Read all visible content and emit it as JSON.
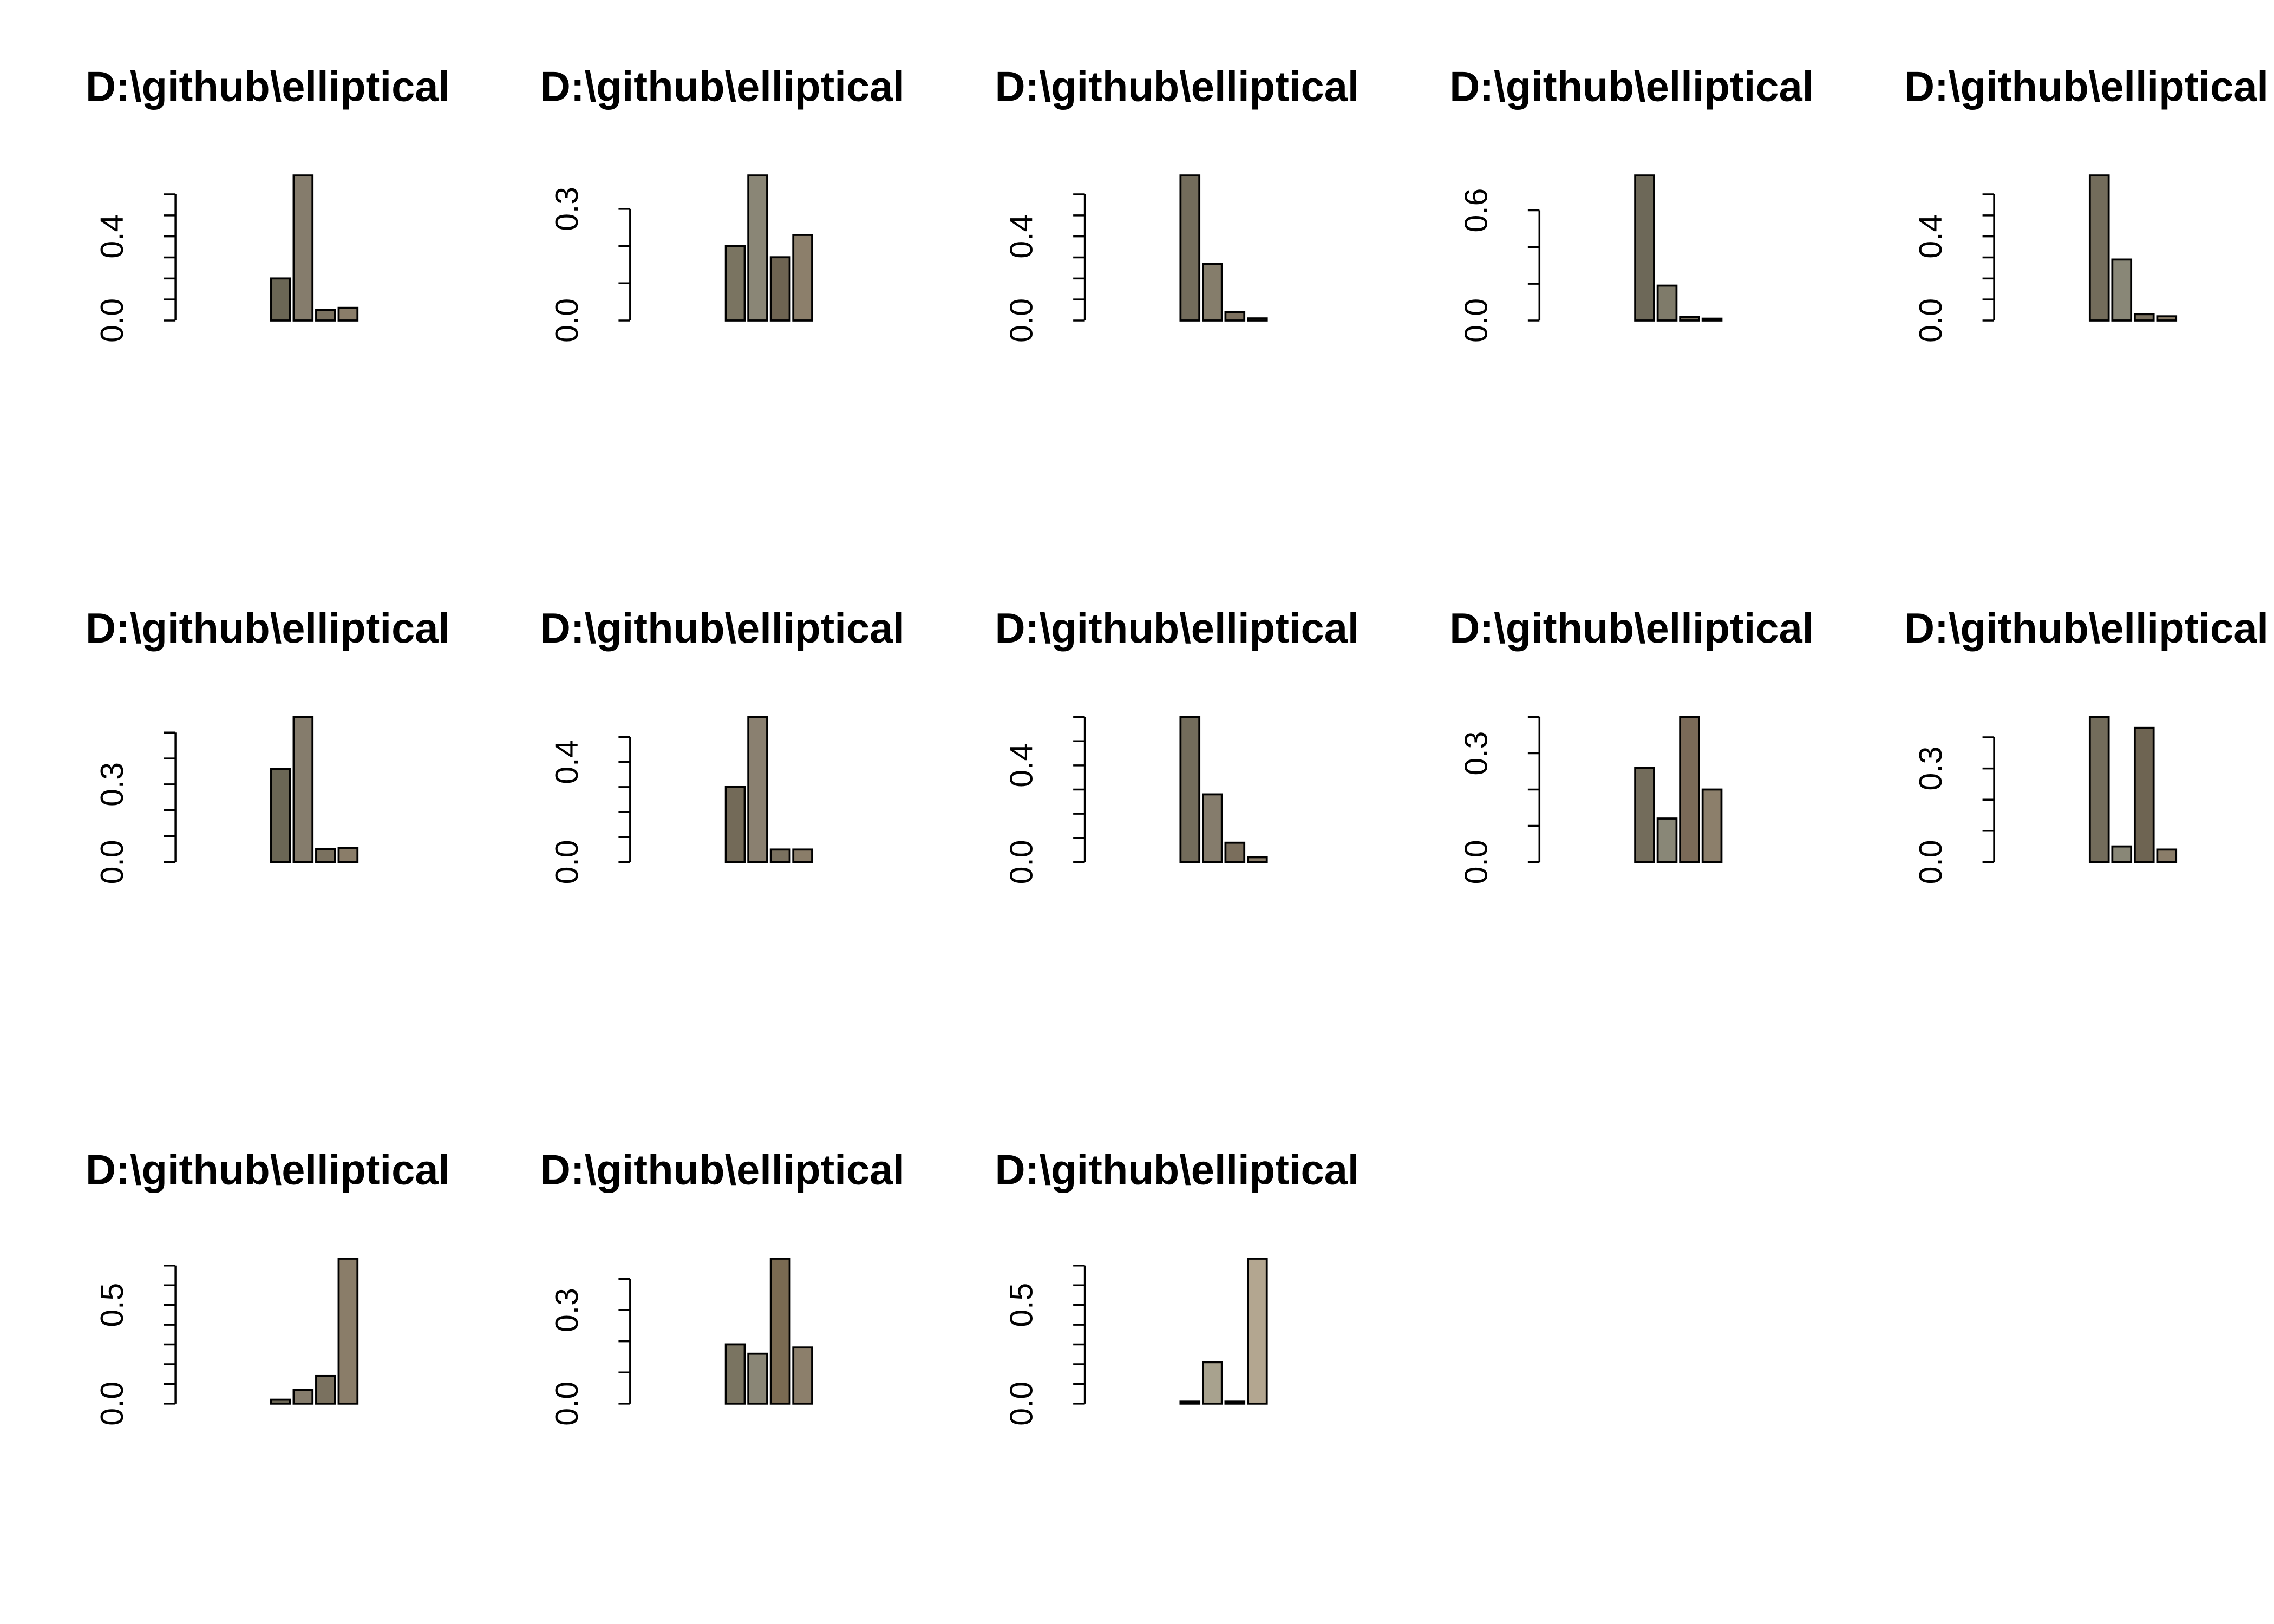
{
  "chart_data": [
    {
      "type": "bar",
      "title": "D:\\github\\elliptical",
      "values": [
        0,
        0,
        0,
        0,
        0.2,
        0.69,
        0.05,
        0.06
      ],
      "colors": [
        "#77705f",
        "#77705f",
        "#77705f",
        "#77705f",
        "#6b6655",
        "#857c6c",
        "#7a715f",
        "#8a7d69"
      ],
      "ylim": [
        0,
        0.69
      ],
      "yticks": [
        {
          "value": 0,
          "label": "0.0"
        },
        0.4
      ],
      "minor_yticks": [
        0.1,
        0.2,
        0.3,
        0.5,
        0.6
      ]
    },
    {
      "type": "bar",
      "title": "D:\\github\\elliptical",
      "values": [
        0,
        0,
        0,
        0,
        0.2,
        0.39,
        0.17,
        0.23
      ],
      "colors": [
        "#77705f",
        "#77705f",
        "#77705f",
        "#77705f",
        "#7a7461",
        "#8a8676",
        "#6e6452",
        "#8c7f6b"
      ],
      "ylim": [
        0,
        0.39
      ],
      "yticks": [
        {
          "value": 0,
          "label": "0.0"
        },
        0.3
      ],
      "minor_yticks": [
        0.1,
        0.2
      ]
    },
    {
      "type": "bar",
      "title": "D:\\github\\elliptical",
      "values": [
        0,
        0,
        0,
        0,
        0.69,
        0.27,
        0.04,
        0.01
      ],
      "colors": [
        "#77705f",
        "#77705f",
        "#77705f",
        "#77705f",
        "#736c5b",
        "#857d6b",
        "#7c705e",
        "#8a7d69"
      ],
      "ylim": [
        0,
        0.69
      ],
      "yticks": [
        {
          "value": 0,
          "label": "0.0"
        },
        0.4
      ],
      "minor_yticks": [
        0.1,
        0.2,
        0.3,
        0.5,
        0.6
      ]
    },
    {
      "type": "bar",
      "title": "D:\\github\\elliptical",
      "values": [
        0,
        0,
        0,
        0,
        0.79,
        0.19,
        0.02,
        0.01
      ],
      "colors": [
        "#77705f",
        "#77705f",
        "#77705f",
        "#77705f",
        "#6d6858",
        "#7f7b6a",
        "#7a715f",
        "#8a7d69"
      ],
      "ylim": [
        0,
        0.79
      ],
      "yticks": [
        {
          "value": 0,
          "label": "0.0"
        },
        0.6
      ],
      "minor_yticks": [
        0.2,
        0.4
      ]
    },
    {
      "type": "bar",
      "title": "D:\\github\\elliptical",
      "values": [
        0,
        0,
        0,
        0,
        0.69,
        0.29,
        0.03,
        0.02
      ],
      "colors": [
        "#77705f",
        "#77705f",
        "#77705f",
        "#77705f",
        "#736c5b",
        "#898777",
        "#7a715f",
        "#8a7d69"
      ],
      "ylim": [
        0,
        0.69
      ],
      "yticks": [
        {
          "value": 0,
          "label": "0.0"
        },
        0.4
      ],
      "minor_yticks": [
        0.1,
        0.2,
        0.3,
        0.5,
        0.6
      ]
    },
    {
      "type": "bar",
      "title": "D:\\github\\elliptical",
      "values": [
        0,
        0,
        0,
        0,
        0.36,
        0.56,
        0.05,
        0.055
      ],
      "colors": [
        "#77705f",
        "#77705f",
        "#77705f",
        "#77705f",
        "#6b6655",
        "#857c6c",
        "#7a715f",
        "#8a7d69"
      ],
      "ylim": [
        0,
        0.56
      ],
      "yticks": [
        {
          "value": 0,
          "label": "0.0"
        },
        0.3
      ],
      "minor_yticks": [
        0.1,
        0.2,
        0.4,
        0.5
      ]
    },
    {
      "type": "bar",
      "title": "D:\\github\\elliptical",
      "values": [
        0,
        0,
        0,
        0,
        0.3,
        0.58,
        0.05,
        0.05
      ],
      "colors": [
        "#77705f",
        "#77705f",
        "#77705f",
        "#77705f",
        "#736a58",
        "#8a8070",
        "#7a715f",
        "#8a7d69"
      ],
      "ylim": [
        0,
        0.58
      ],
      "yticks": [
        {
          "value": 0,
          "label": "0.0"
        },
        0.4
      ],
      "minor_yticks": [
        0.1,
        0.2,
        0.3,
        0.5
      ]
    },
    {
      "type": "bar",
      "title": "D:\\github\\elliptical",
      "values": [
        0,
        0,
        0,
        0,
        0.6,
        0.28,
        0.08,
        0.02
      ],
      "colors": [
        "#77705f",
        "#77705f",
        "#77705f",
        "#77705f",
        "#736c5b",
        "#857c6c",
        "#7a6e5c",
        "#8a7d69"
      ],
      "ylim": [
        0,
        0.6
      ],
      "yticks": [
        {
          "value": 0,
          "label": "0.0"
        },
        0.4
      ],
      "minor_yticks": [
        0.1,
        0.2,
        0.3,
        0.5,
        0.6
      ]
    },
    {
      "type": "bar",
      "title": "D:\\github\\elliptical",
      "values": [
        0,
        0,
        0,
        0,
        0.26,
        0.12,
        0.4,
        0.2
      ],
      "colors": [
        "#77705f",
        "#77705f",
        "#77705f",
        "#77705f",
        "#736c5b",
        "#898777",
        "#7a6a58",
        "#8c7f6b"
      ],
      "ylim": [
        0,
        0.4
      ],
      "yticks": [
        {
          "value": 0,
          "label": "0.0"
        },
        0.3
      ],
      "minor_yticks": [
        0.1,
        0.2,
        0.4
      ]
    },
    {
      "type": "bar",
      "title": "D:\\github\\elliptical",
      "values": [
        0,
        0,
        0,
        0,
        0.465,
        0.05,
        0.43,
        0.04
      ],
      "colors": [
        "#77705f",
        "#77705f",
        "#77705f",
        "#77705f",
        "#736c5b",
        "#898777",
        "#6e6452",
        "#8a7d69"
      ],
      "ylim": [
        0,
        0.465
      ],
      "yticks": [
        {
          "value": 0,
          "label": "0.0"
        },
        0.3
      ],
      "minor_yticks": [
        0.1,
        0.2,
        0.4
      ]
    },
    {
      "type": "bar",
      "title": "D:\\github\\elliptical",
      "values": [
        0,
        0,
        0,
        0,
        0.02,
        0.07,
        0.14,
        0.735
      ],
      "colors": [
        "#77705f",
        "#77705f",
        "#77705f",
        "#77705f",
        "#6b6655",
        "#857c6c",
        "#7a715f",
        "#8a7d69"
      ],
      "ylim": [
        0,
        0.735
      ],
      "yticks": [
        {
          "value": 0,
          "label": "0.0"
        },
        0.5
      ],
      "minor_yticks": [
        0.1,
        0.2,
        0.3,
        0.4,
        0.6,
        0.7
      ]
    },
    {
      "type": "bar",
      "title": "D:\\github\\elliptical",
      "values": [
        0,
        0,
        0,
        0,
        0.19,
        0.16,
        0.465,
        0.18
      ],
      "colors": [
        "#77705f",
        "#77705f",
        "#77705f",
        "#77705f",
        "#7a7461",
        "#8a8676",
        "#7a6a52",
        "#8c7f6b"
      ],
      "ylim": [
        0,
        0.465
      ],
      "yticks": [
        {
          "value": 0,
          "label": "0.0"
        },
        0.3
      ],
      "minor_yticks": [
        0.1,
        0.2,
        0.4
      ]
    },
    {
      "type": "bar",
      "title": "D:\\github\\elliptical",
      "values": [
        0,
        0,
        0,
        0,
        0.01,
        0.21,
        0.01,
        0.735
      ],
      "colors": [
        "#77705f",
        "#77705f",
        "#77705f",
        "#77705f",
        "#8a8676",
        "#a8a28e",
        "#8a8070",
        "#b3a690"
      ],
      "ylim": [
        0,
        0.735
      ],
      "yticks": [
        {
          "value": 0,
          "label": "0.0"
        },
        0.5
      ],
      "minor_yticks": [
        0.1,
        0.2,
        0.3,
        0.4,
        0.6,
        0.7
      ]
    }
  ]
}
